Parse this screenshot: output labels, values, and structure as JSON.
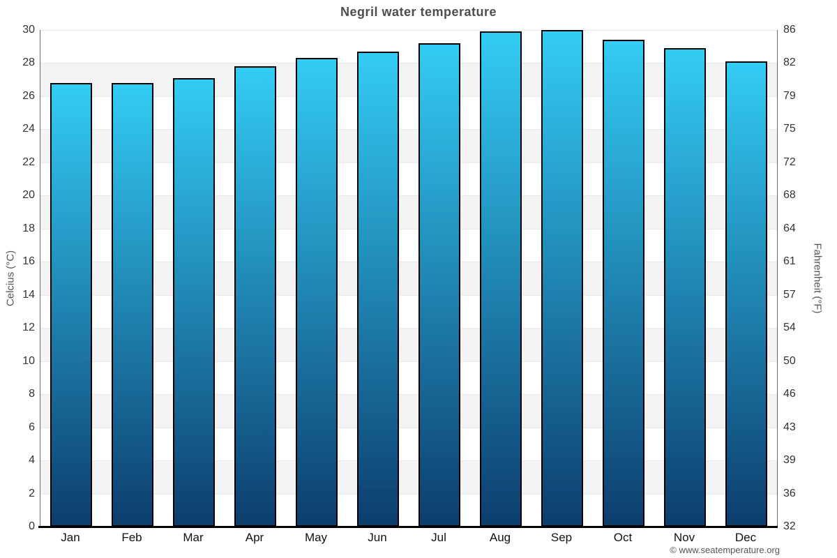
{
  "header": {
    "title": "Negril water temperature"
  },
  "footer": {
    "text": "© www.seatemperature.org"
  },
  "chart_data": {
    "type": "bar",
    "title": "Negril water temperature",
    "categories": [
      "Jan",
      "Feb",
      "Mar",
      "Apr",
      "May",
      "Jun",
      "Jul",
      "Aug",
      "Sep",
      "Oct",
      "Nov",
      "Dec"
    ],
    "values": [
      26.8,
      26.8,
      27.1,
      27.8,
      28.3,
      28.7,
      29.2,
      29.9,
      30.0,
      29.4,
      28.9,
      28.1
    ],
    "xlabel": "",
    "ylabel_left": "Celcius (°C)",
    "ylabel_right": "Fahrenheit (°F)",
    "ylim": [
      0,
      30
    ],
    "yticks_celsius": [
      30,
      28,
      26,
      24,
      22,
      20,
      18,
      16,
      14,
      12,
      10,
      8,
      6,
      4,
      2,
      0
    ],
    "yticks_fahrenheit": [
      86,
      82,
      79,
      75,
      72,
      68,
      64,
      61,
      57,
      54,
      50,
      46,
      43,
      39,
      36,
      32
    ],
    "grid": "alternating-horizontal-bands",
    "legend": "none",
    "colors": {
      "bar_gradient_top": "#33ccf5",
      "bar_gradient_bottom": "#0c3e6e",
      "bar_border": "#000000",
      "band_gray": "#f3f3f3",
      "band_white": "#ffffff",
      "gridline": "#e8e8e8",
      "title_text": "#4d4d4d",
      "tick_text": "#333333",
      "month_text": "#111111",
      "axis_title_text": "#555555",
      "footer_text": "#555555",
      "axis_line": "#666666",
      "bottom_axis_line": "#000000"
    }
  }
}
